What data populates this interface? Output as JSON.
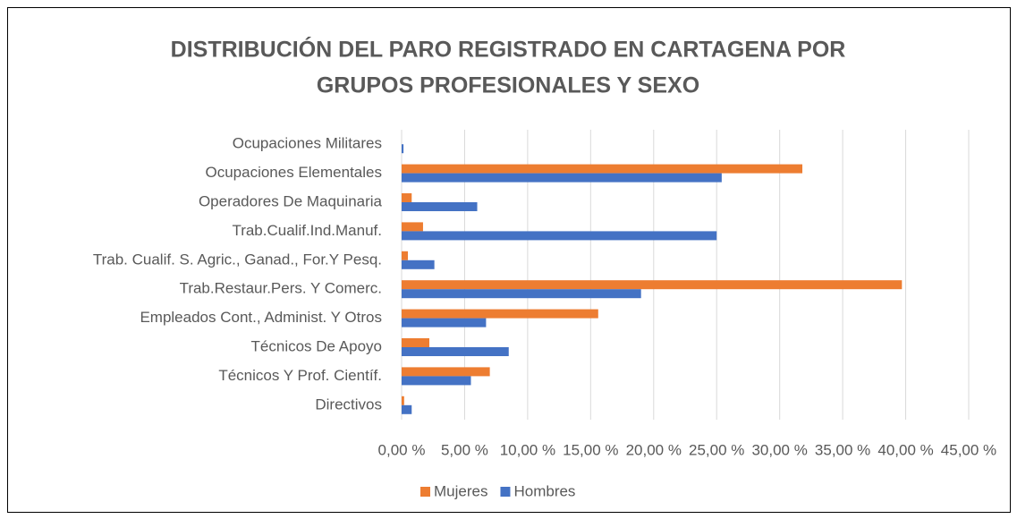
{
  "chart_data": {
    "type": "hbar",
    "title": [
      "DISTRIBUCIÓN DEL PARO REGISTRADO EN CARTAGENA POR",
      "GRUPOS PROFESIONALES Y SEXO"
    ],
    "categories": [
      "Ocupaciones Militares",
      "Ocupaciones Elementales",
      "Operadores De Maquinaria",
      "Trab.Cualif.Ind.Manuf.",
      "Trab. Cualif. S. Agric., Ganad., For.Y Pesq.",
      "Trab.Restaur.Pers. Y Comerc.",
      "Empleados Cont., Administ. Y Otros",
      "Técnicos De Apoyo",
      "Técnicos Y Prof. Científ.",
      "Directivos"
    ],
    "series": [
      {
        "name": "Mujeres",
        "color": "#ED7D31",
        "values": [
          0,
          31.8,
          0.8,
          1.7,
          0.5,
          39.7,
          15.6,
          2.2,
          7.0,
          0.2
        ]
      },
      {
        "name": "Hombres",
        "color": "#4472C4",
        "values": [
          0.15,
          25.4,
          6.0,
          25.0,
          2.6,
          19.0,
          6.7,
          8.5,
          5.5,
          0.8
        ]
      }
    ],
    "xlim": [
      0,
      45
    ],
    "xticks": [
      {
        "value": 0,
        "label": "0,00 %"
      },
      {
        "value": 5,
        "label": "5,00 %"
      },
      {
        "value": 10,
        "label": "10,00 %"
      },
      {
        "value": 15,
        "label": "15,00 %"
      },
      {
        "value": 20,
        "label": "20,00 %"
      },
      {
        "value": 25,
        "label": "25,00 %"
      },
      {
        "value": 30,
        "label": "30,00 %"
      },
      {
        "value": 35,
        "label": "35,00 %"
      },
      {
        "value": 40,
        "label": "40,00 %"
      },
      {
        "value": 45,
        "label": "45,00 %"
      }
    ],
    "grid": true,
    "legend": "bottom"
  }
}
